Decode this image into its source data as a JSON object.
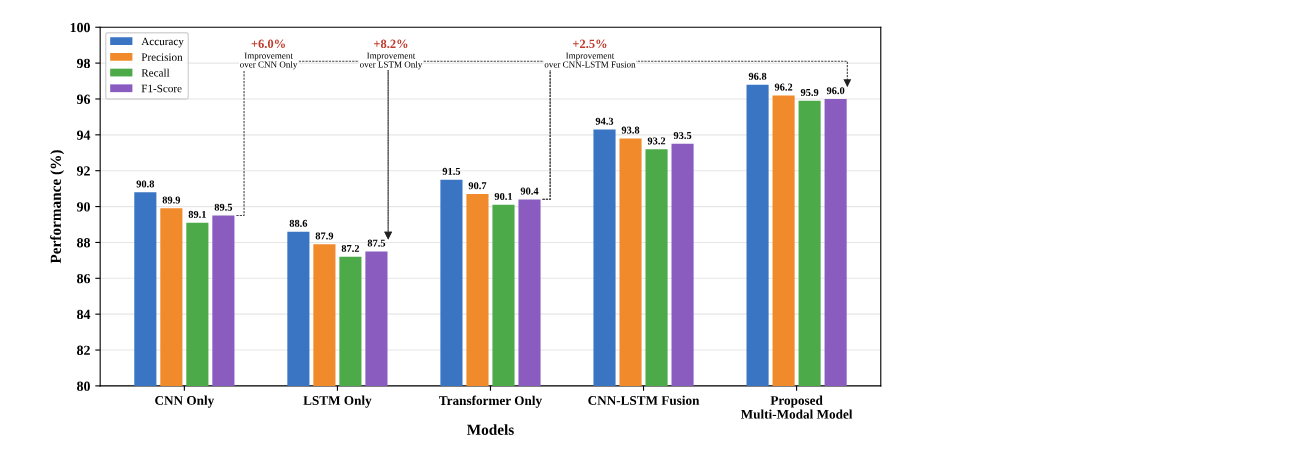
{
  "chart_data": {
    "type": "bar",
    "xlabel": "Models",
    "ylabel": "Performance (%)",
    "categories": [
      "CNN Only",
      "LSTM Only",
      "Transformer Only",
      "CNN-LSTM Fusion",
      "Proposed\nMulti-Modal Model"
    ],
    "series": [
      {
        "name": "Accuracy",
        "color": "#3a75c4",
        "values": [
          90.8,
          88.6,
          91.5,
          94.3,
          96.8
        ],
        "value_labels": [
          "90.8",
          "88.6",
          "91.5",
          "94.3",
          "96.8"
        ]
      },
      {
        "name": "Precision",
        "color": "#f08a2b",
        "values": [
          89.9,
          87.9,
          90.7,
          93.8,
          96.2
        ],
        "value_labels": [
          "89.9",
          "87.9",
          "90.7",
          "93.8",
          "96.2"
        ]
      },
      {
        "name": "Recall",
        "color": "#4caa48",
        "values": [
          89.1,
          87.2,
          90.1,
          93.2,
          95.9
        ],
        "value_labels": [
          "89.1",
          "87.2",
          "90.1",
          "93.2",
          "95.9"
        ]
      },
      {
        "name": "F1-Score",
        "color": "#8a5cc0",
        "values": [
          89.5,
          87.5,
          90.4,
          93.5,
          96.0
        ],
        "value_labels": [
          "89.5",
          "87.5",
          "90.4",
          "93.5",
          "96.0"
        ]
      }
    ],
    "ylim": [
      80,
      100
    ],
    "yticks": [
      80,
      82,
      84,
      86,
      88,
      90,
      92,
      94,
      96,
      98,
      100
    ],
    "grid": "y",
    "legend": "top left",
    "data_labels": true,
    "annotations": [
      "+6.0%",
      "Improvement\nover CNN Only",
      "+8.2%",
      "Improvement\nover LSTM Only",
      "+2.5%",
      "Improvement\nover CNN-LSTM Fusion"
    ]
  }
}
